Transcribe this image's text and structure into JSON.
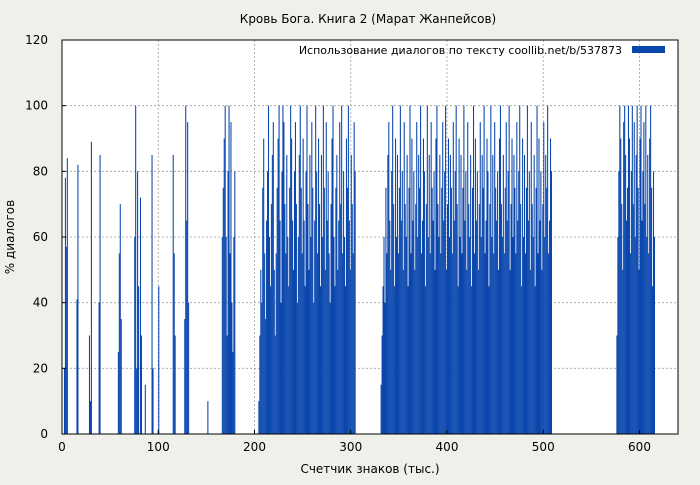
{
  "chart_data": {
    "type": "bar",
    "title": "Кровь Бога. Книга 2 (Марат Жанпейсов)",
    "xlabel": "Счетчик знаков (тыс.)",
    "ylabel": "% диалогов",
    "xlim": [
      0,
      640
    ],
    "ylim": [
      0,
      120
    ],
    "x_ticks": [
      0,
      100,
      200,
      300,
      400,
      500,
      600
    ],
    "y_ticks": [
      0,
      20,
      40,
      60,
      80,
      100,
      120
    ],
    "grid": true,
    "legend_position": "top-right",
    "colors": {
      "bar": "#0a47ad",
      "background": "#f0f0ea",
      "plot_background": "#ffffff",
      "grid": "#a0a0a0"
    },
    "series": [
      {
        "name": "Использование диалогов по тексту  coollib.net/b/537873",
        "x_step": 1,
        "values": [
          0,
          0,
          20,
          78,
          57,
          84,
          0,
          0,
          0,
          0,
          0,
          0,
          0,
          0,
          0,
          41,
          82,
          0,
          0,
          0,
          0,
          0,
          0,
          0,
          0,
          0,
          0,
          0,
          30,
          10,
          89,
          0,
          0,
          0,
          0,
          0,
          0,
          0,
          40,
          85,
          0,
          0,
          0,
          0,
          0,
          0,
          0,
          0,
          0,
          0,
          0,
          0,
          0,
          0,
          0,
          0,
          0,
          0,
          25,
          55,
          70,
          35,
          0,
          0,
          0,
          0,
          0,
          0,
          0,
          0,
          0,
          0,
          0,
          0,
          0,
          60,
          100,
          20,
          80,
          45,
          0,
          72,
          30,
          0,
          0,
          0,
          15,
          0,
          0,
          0,
          0,
          0,
          0,
          85,
          20,
          0,
          0,
          0,
          0,
          0,
          45,
          0,
          0,
          0,
          0,
          0,
          0,
          0,
          0,
          0,
          0,
          0,
          0,
          0,
          0,
          85,
          55,
          30,
          0,
          0,
          0,
          0,
          0,
          0,
          0,
          0,
          0,
          35,
          100,
          65,
          95,
          40,
          0,
          0,
          0,
          0,
          0,
          0,
          0,
          0,
          0,
          0,
          0,
          0,
          0,
          0,
          0,
          0,
          0,
          0,
          0,
          10,
          0,
          0,
          0,
          0,
          0,
          0,
          0,
          0,
          0,
          0,
          0,
          0,
          0,
          0,
          60,
          75,
          90,
          100,
          60,
          30,
          80,
          100,
          55,
          95,
          40,
          25,
          60,
          80,
          0,
          0,
          0,
          0,
          0,
          0,
          0,
          0,
          0,
          0,
          0,
          0,
          0,
          0,
          0,
          0,
          0,
          0,
          0,
          0,
          0,
          0,
          0,
          0,
          10,
          30,
          50,
          40,
          75,
          90,
          55,
          35,
          65,
          80,
          100,
          60,
          45,
          70,
          85,
          95,
          50,
          30,
          55,
          75,
          90,
          100,
          65,
          40,
          80,
          100,
          95,
          70,
          55,
          85,
          60,
          45,
          75,
          100,
          90,
          65,
          50,
          80,
          95,
          70,
          40,
          60,
          85,
          100,
          75,
          55,
          90,
          65,
          45,
          80,
          100,
          70,
          50,
          85,
          60,
          95,
          75,
          40,
          65,
          100,
          80,
          55,
          90,
          70,
          45,
          85,
          60,
          100,
          75,
          50,
          95,
          65,
          80,
          55,
          40,
          70,
          90,
          100,
          60,
          45,
          75,
          85,
          50,
          65,
          95,
          70,
          100,
          55,
          80,
          60,
          45,
          90,
          75,
          100,
          65,
          50,
          85,
          70,
          55,
          95,
          80,
          0,
          0,
          0,
          0,
          0,
          0,
          0,
          0,
          0,
          0,
          0,
          0,
          0,
          0,
          0,
          0,
          0,
          0,
          0,
          0,
          0,
          0,
          0,
          0,
          0,
          0,
          15,
          30,
          45,
          60,
          40,
          75,
          55,
          85,
          95,
          65,
          50,
          80,
          100,
          70,
          45,
          90,
          60,
          85,
          55,
          75,
          100,
          65,
          80,
          50,
          95,
          70,
          60,
          85,
          45,
          75,
          100,
          55,
          90,
          65,
          80,
          50,
          70,
          95,
          60,
          85,
          75,
          100,
          55,
          65,
          90,
          80,
          45,
          70,
          100,
          60,
          85,
          55,
          95,
          75,
          65,
          80,
          50,
          90,
          100,
          70,
          60,
          85,
          55,
          75,
          95,
          65,
          80,
          100,
          50,
          70,
          90,
          60,
          85,
          75,
          55,
          95,
          65,
          80,
          100,
          70,
          45,
          90,
          60,
          85,
          55,
          75,
          100,
          65,
          80,
          50,
          95,
          70,
          60,
          85,
          45,
          75,
          100,
          55,
          90,
          65,
          80,
          50,
          70,
          95,
          60,
          85,
          75,
          100,
          55,
          65,
          90,
          80,
          45,
          70,
          100,
          60,
          85,
          55,
          95,
          75,
          65,
          80,
          50,
          90,
          100,
          70,
          60,
          85,
          55,
          75,
          95,
          65,
          80,
          100,
          50,
          70,
          90,
          60,
          85,
          75,
          55,
          95,
          65,
          80,
          100,
          70,
          45,
          90,
          60,
          85,
          55,
          75,
          100,
          65,
          80,
          50,
          95,
          70,
          60,
          85,
          45,
          75,
          100,
          55,
          90,
          65,
          80,
          50,
          70,
          95,
          60,
          85,
          75,
          100,
          55,
          65,
          90,
          80,
          0,
          0,
          0,
          0,
          0,
          0,
          0,
          0,
          0,
          0,
          0,
          0,
          0,
          0,
          0,
          0,
          0,
          0,
          0,
          0,
          0,
          0,
          0,
          0,
          0,
          0,
          0,
          0,
          0,
          0,
          0,
          0,
          0,
          0,
          0,
          0,
          0,
          0,
          0,
          0,
          0,
          0,
          0,
          0,
          0,
          0,
          0,
          0,
          0,
          0,
          0,
          0,
          0,
          0,
          0,
          0,
          0,
          0,
          0,
          0,
          0,
          0,
          0,
          0,
          0,
          0,
          0,
          30,
          60,
          80,
          100,
          90,
          70,
          50,
          95,
          100,
          85,
          65,
          75,
          100,
          90,
          55,
          80,
          100,
          70,
          95,
          60,
          85,
          100,
          75,
          50,
          90,
          100,
          65,
          80,
          95,
          70,
          100,
          60,
          85,
          55,
          90,
          100,
          75,
          45,
          80,
          60,
          0,
          0,
          0,
          0,
          0,
          0,
          0,
          0,
          0,
          0,
          0,
          0,
          0,
          0,
          0,
          0,
          0,
          0,
          0,
          0,
          0
        ]
      }
    ]
  }
}
